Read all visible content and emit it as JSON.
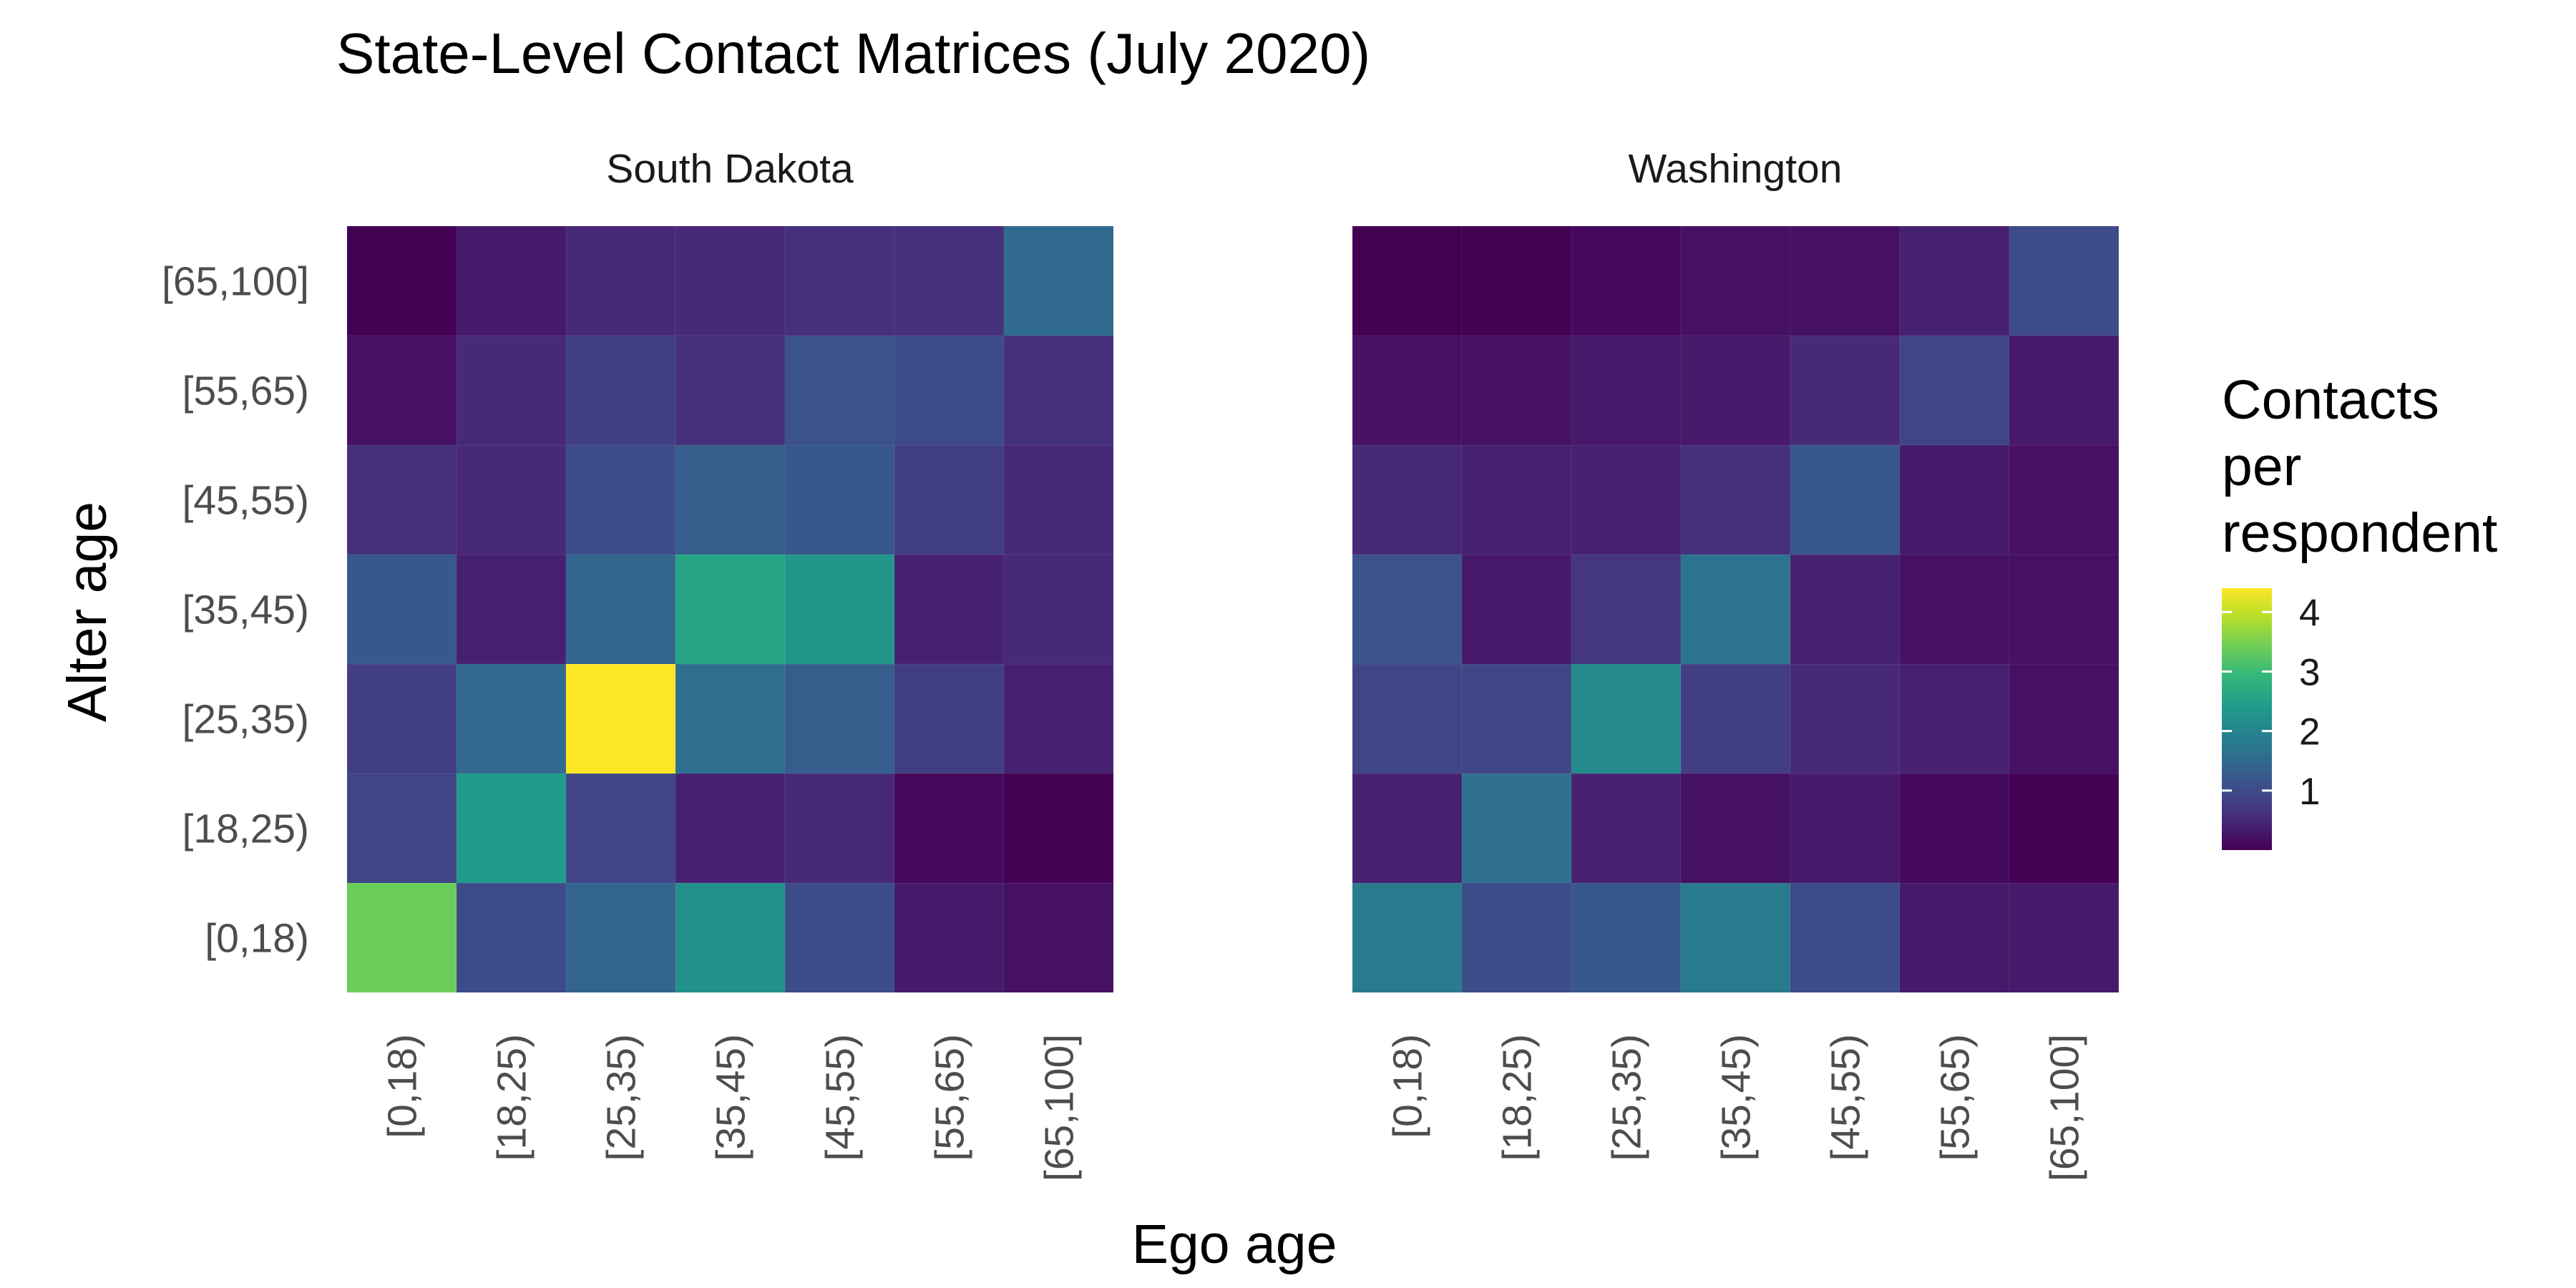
{
  "chart_data": {
    "type": "heatmap",
    "title": "State-Level Contact Matrices (July 2020)",
    "xlabel": "Ego age",
    "ylabel": "Alter age",
    "age_groups": [
      "[0,18)",
      "[18,25)",
      "[25,35)",
      "[35,45)",
      "[45,55)",
      "[55,65)",
      "[65,100]"
    ],
    "colorscale": "viridis",
    "color_range": [
      0.0,
      4.4
    ],
    "legend": {
      "title_lines": [
        "Contacts",
        "per",
        "respondent"
      ],
      "ticks": [
        1,
        2,
        3,
        4
      ],
      "position": "right"
    },
    "panels": [
      {
        "name": "South Dakota",
        "values_by_ego": [
          [
            3.4,
            0.9,
            0.8,
            1.2,
            0.6,
            0.2,
            0.0
          ],
          [
            1.0,
            2.4,
            1.5,
            0.4,
            0.5,
            0.5,
            0.3
          ],
          [
            1.4,
            0.9,
            4.4,
            1.4,
            1.0,
            0.8,
            0.5
          ],
          [
            2.2,
            0.4,
            1.6,
            2.6,
            1.3,
            0.6,
            0.5
          ],
          [
            1.0,
            0.5,
            1.3,
            2.3,
            1.2,
            1.1,
            0.6
          ],
          [
            0.3,
            0.1,
            0.8,
            0.4,
            0.8,
            1.0,
            0.6
          ],
          [
            0.2,
            0.0,
            0.4,
            0.5,
            0.5,
            0.6,
            1.5
          ]
        ]
      },
      {
        "name": "Washington",
        "values_by_ego": [
          [
            1.8,
            0.4,
            0.9,
            1.1,
            0.5,
            0.2,
            0.0
          ],
          [
            1.0,
            1.6,
            0.9,
            0.3,
            0.4,
            0.2,
            0.0
          ],
          [
            1.2,
            0.4,
            2.1,
            0.7,
            0.4,
            0.3,
            0.1
          ],
          [
            1.8,
            0.2,
            0.8,
            1.7,
            0.6,
            0.3,
            0.2
          ],
          [
            1.0,
            0.3,
            0.5,
            0.4,
            1.2,
            0.5,
            0.2
          ],
          [
            0.3,
            0.1,
            0.4,
            0.2,
            0.3,
            0.9,
            0.4
          ],
          [
            0.3,
            0.0,
            0.2,
            0.2,
            0.2,
            0.3,
            1.0
          ]
        ]
      }
    ]
  }
}
